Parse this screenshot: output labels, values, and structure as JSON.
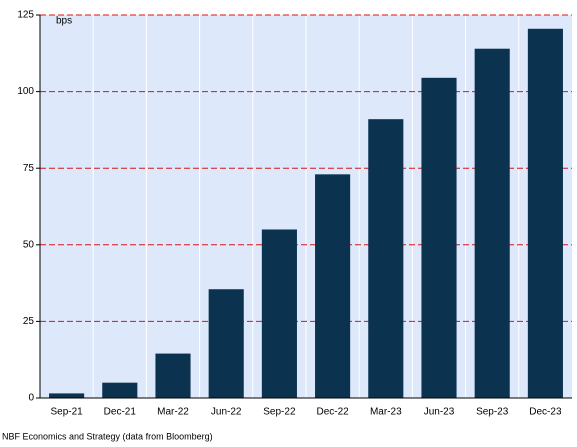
{
  "chart_data": {
    "type": "bar",
    "ylabel": "bps",
    "categories": [
      "Sep-21",
      "Dec-21",
      "Mar-22",
      "Jun-22",
      "Sep-22",
      "Dec-22",
      "Mar-23",
      "Jun-23",
      "Sep-23",
      "Dec-23"
    ],
    "values": [
      1.5,
      5,
      14.5,
      35.5,
      55,
      73,
      91,
      104.5,
      114,
      120.5
    ],
    "color": "#0b3350",
    "ylim": [
      0,
      125
    ],
    "yticks": [
      0,
      25,
      50,
      75,
      100,
      125
    ],
    "grid": true,
    "grid_color": "#d9141a",
    "source": "NBF Economics and Strategy (data from Bloomberg)"
  }
}
